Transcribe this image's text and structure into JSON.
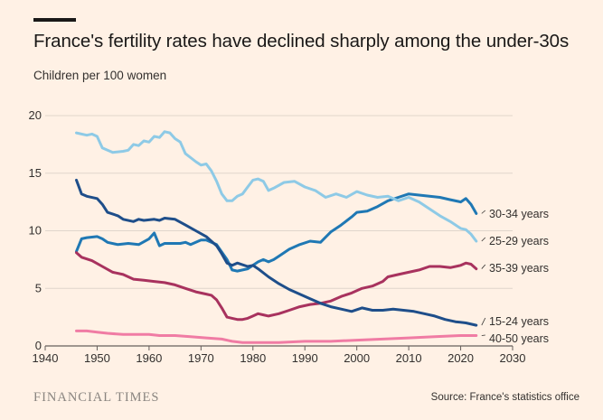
{
  "header": {
    "title": "France's fertility rates have declined sharply among the under-30s",
    "subtitle": "Children per 100 women"
  },
  "footer": {
    "brand": "FINANCIAL TIMES",
    "source": "Source: France's statistics office"
  },
  "colors": {
    "background": "#fff1e5",
    "grid": "#e0d6cc",
    "baseline": "#66605c",
    "text": "#33302e"
  },
  "chart_data": {
    "type": "line",
    "title": "France's fertility rates have declined sharply among the under-30s",
    "ylabel": "Children per 100 women",
    "xlim": [
      1940,
      2030
    ],
    "ylim": [
      0,
      20
    ],
    "xticks": [
      1940,
      1950,
      1960,
      1970,
      1980,
      1990,
      2000,
      2010,
      2020,
      2030
    ],
    "yticks": [
      0,
      5,
      10,
      15,
      20
    ],
    "grid": true,
    "legend": "direct labels at line ends (right)",
    "series": [
      {
        "name": "30-34 years",
        "color": "#1f78b4",
        "points": [
          [
            1946,
            8.2
          ],
          [
            1947,
            9.3
          ],
          [
            1948,
            9.4
          ],
          [
            1950,
            9.5
          ],
          [
            1951,
            9.3
          ],
          [
            1952,
            9.0
          ],
          [
            1954,
            8.8
          ],
          [
            1956,
            8.9
          ],
          [
            1958,
            8.8
          ],
          [
            1960,
            9.3
          ],
          [
            1961,
            9.8
          ],
          [
            1962,
            8.7
          ],
          [
            1963,
            8.9
          ],
          [
            1966,
            8.9
          ],
          [
            1967,
            9.0
          ],
          [
            1968,
            8.8
          ],
          [
            1970,
            9.2
          ],
          [
            1971,
            9.2
          ],
          [
            1973,
            8.8
          ],
          [
            1975,
            7.5
          ],
          [
            1976,
            6.6
          ],
          [
            1977,
            6.5
          ],
          [
            1979,
            6.7
          ],
          [
            1981,
            7.3
          ],
          [
            1982,
            7.5
          ],
          [
            1983,
            7.3
          ],
          [
            1984,
            7.5
          ],
          [
            1985,
            7.8
          ],
          [
            1987,
            8.4
          ],
          [
            1989,
            8.8
          ],
          [
            1991,
            9.1
          ],
          [
            1993,
            9.0
          ],
          [
            1995,
            9.9
          ],
          [
            1997,
            10.5
          ],
          [
            1999,
            11.2
          ],
          [
            2000,
            11.6
          ],
          [
            2002,
            11.7
          ],
          [
            2004,
            12.1
          ],
          [
            2006,
            12.6
          ],
          [
            2008,
            12.9
          ],
          [
            2010,
            13.2
          ],
          [
            2012,
            13.1
          ],
          [
            2014,
            13.0
          ],
          [
            2016,
            12.9
          ],
          [
            2018,
            12.7
          ],
          [
            2020,
            12.5
          ],
          [
            2021,
            12.8
          ],
          [
            2022,
            12.3
          ],
          [
            2023,
            11.5
          ]
        ]
      },
      {
        "name": "25-29 years",
        "color": "#8ecae6",
        "points": [
          [
            1946,
            18.5
          ],
          [
            1948,
            18.3
          ],
          [
            1949,
            18.4
          ],
          [
            1950,
            18.2
          ],
          [
            1951,
            17.2
          ],
          [
            1953,
            16.8
          ],
          [
            1955,
            16.9
          ],
          [
            1956,
            17.0
          ],
          [
            1957,
            17.5
          ],
          [
            1958,
            17.4
          ],
          [
            1959,
            17.8
          ],
          [
            1960,
            17.7
          ],
          [
            1961,
            18.2
          ],
          [
            1962,
            18.1
          ],
          [
            1963,
            18.6
          ],
          [
            1964,
            18.5
          ],
          [
            1965,
            18.0
          ],
          [
            1966,
            17.7
          ],
          [
            1967,
            16.7
          ],
          [
            1969,
            16.0
          ],
          [
            1970,
            15.7
          ],
          [
            1971,
            15.8
          ],
          [
            1972,
            15.2
          ],
          [
            1973,
            14.3
          ],
          [
            1974,
            13.2
          ],
          [
            1975,
            12.6
          ],
          [
            1976,
            12.6
          ],
          [
            1977,
            13.0
          ],
          [
            1978,
            13.2
          ],
          [
            1979,
            13.8
          ],
          [
            1980,
            14.4
          ],
          [
            1981,
            14.5
          ],
          [
            1982,
            14.3
          ],
          [
            1983,
            13.5
          ],
          [
            1984,
            13.7
          ],
          [
            1986,
            14.2
          ],
          [
            1988,
            14.3
          ],
          [
            1990,
            13.8
          ],
          [
            1992,
            13.5
          ],
          [
            1994,
            12.9
          ],
          [
            1996,
            13.2
          ],
          [
            1998,
            12.9
          ],
          [
            2000,
            13.4
          ],
          [
            2002,
            13.1
          ],
          [
            2004,
            12.9
          ],
          [
            2006,
            13.0
          ],
          [
            2008,
            12.6
          ],
          [
            2010,
            12.9
          ],
          [
            2012,
            12.5
          ],
          [
            2014,
            11.9
          ],
          [
            2016,
            11.3
          ],
          [
            2018,
            10.8
          ],
          [
            2020,
            10.2
          ],
          [
            2021,
            10.1
          ],
          [
            2022,
            9.7
          ],
          [
            2023,
            9.1
          ]
        ]
      },
      {
        "name": "35-39 years",
        "color": "#a8325e",
        "points": [
          [
            1946,
            8.1
          ],
          [
            1947,
            7.7
          ],
          [
            1949,
            7.4
          ],
          [
            1951,
            6.9
          ],
          [
            1953,
            6.4
          ],
          [
            1955,
            6.2
          ],
          [
            1957,
            5.8
          ],
          [
            1959,
            5.7
          ],
          [
            1961,
            5.6
          ],
          [
            1963,
            5.5
          ],
          [
            1965,
            5.3
          ],
          [
            1967,
            5.0
          ],
          [
            1969,
            4.7
          ],
          [
            1971,
            4.5
          ],
          [
            1972,
            4.4
          ],
          [
            1973,
            4.0
          ],
          [
            1974,
            3.3
          ],
          [
            1975,
            2.5
          ],
          [
            1976,
            2.4
          ],
          [
            1977,
            2.3
          ],
          [
            1978,
            2.3
          ],
          [
            1979,
            2.4
          ],
          [
            1980,
            2.6
          ],
          [
            1981,
            2.8
          ],
          [
            1982,
            2.7
          ],
          [
            1983,
            2.6
          ],
          [
            1985,
            2.8
          ],
          [
            1987,
            3.1
          ],
          [
            1989,
            3.4
          ],
          [
            1991,
            3.6
          ],
          [
            1993,
            3.7
          ],
          [
            1995,
            3.9
          ],
          [
            1997,
            4.3
          ],
          [
            1999,
            4.6
          ],
          [
            2001,
            5.0
          ],
          [
            2003,
            5.2
          ],
          [
            2005,
            5.6
          ],
          [
            2006,
            6.0
          ],
          [
            2008,
            6.2
          ],
          [
            2010,
            6.4
          ],
          [
            2012,
            6.6
          ],
          [
            2014,
            6.9
          ],
          [
            2016,
            6.9
          ],
          [
            2018,
            6.8
          ],
          [
            2020,
            7.0
          ],
          [
            2021,
            7.2
          ],
          [
            2022,
            7.1
          ],
          [
            2023,
            6.7
          ]
        ]
      },
      {
        "name": "15-24 years",
        "color": "#1e4e8a",
        "points": [
          [
            1946,
            14.4
          ],
          [
            1947,
            13.2
          ],
          [
            1948,
            13.0
          ],
          [
            1950,
            12.8
          ],
          [
            1951,
            12.3
          ],
          [
            1952,
            11.6
          ],
          [
            1954,
            11.3
          ],
          [
            1955,
            11.0
          ],
          [
            1957,
            10.8
          ],
          [
            1958,
            11.0
          ],
          [
            1959,
            10.9
          ],
          [
            1961,
            11.0
          ],
          [
            1962,
            10.9
          ],
          [
            1963,
            11.1
          ],
          [
            1965,
            11.0
          ],
          [
            1967,
            10.5
          ],
          [
            1969,
            10.0
          ],
          [
            1971,
            9.5
          ],
          [
            1972,
            9.1
          ],
          [
            1973,
            8.7
          ],
          [
            1974,
            8.0
          ],
          [
            1975,
            7.2
          ],
          [
            1976,
            7.0
          ],
          [
            1977,
            7.2
          ],
          [
            1979,
            6.9
          ],
          [
            1980,
            7.0
          ],
          [
            1981,
            6.7
          ],
          [
            1983,
            6.0
          ],
          [
            1985,
            5.4
          ],
          [
            1987,
            4.9
          ],
          [
            1989,
            4.5
          ],
          [
            1991,
            4.1
          ],
          [
            1993,
            3.7
          ],
          [
            1995,
            3.4
          ],
          [
            1997,
            3.2
          ],
          [
            1999,
            3.0
          ],
          [
            2001,
            3.3
          ],
          [
            2003,
            3.1
          ],
          [
            2005,
            3.1
          ],
          [
            2007,
            3.2
          ],
          [
            2009,
            3.1
          ],
          [
            2011,
            3.0
          ],
          [
            2013,
            2.8
          ],
          [
            2015,
            2.6
          ],
          [
            2017,
            2.3
          ],
          [
            2019,
            2.1
          ],
          [
            2021,
            2.0
          ],
          [
            2023,
            1.8
          ]
        ]
      },
      {
        "name": "40-50 years",
        "color": "#f07ca4",
        "points": [
          [
            1946,
            1.3
          ],
          [
            1948,
            1.3
          ],
          [
            1950,
            1.2
          ],
          [
            1952,
            1.1
          ],
          [
            1955,
            1.0
          ],
          [
            1960,
            1.0
          ],
          [
            1962,
            0.9
          ],
          [
            1965,
            0.9
          ],
          [
            1968,
            0.8
          ],
          [
            1971,
            0.7
          ],
          [
            1974,
            0.6
          ],
          [
            1976,
            0.4
          ],
          [
            1978,
            0.3
          ],
          [
            1985,
            0.3
          ],
          [
            1990,
            0.4
          ],
          [
            1995,
            0.4
          ],
          [
            2000,
            0.5
          ],
          [
            2005,
            0.6
          ],
          [
            2010,
            0.7
          ],
          [
            2015,
            0.8
          ],
          [
            2020,
            0.9
          ],
          [
            2023,
            0.9
          ]
        ]
      }
    ]
  }
}
